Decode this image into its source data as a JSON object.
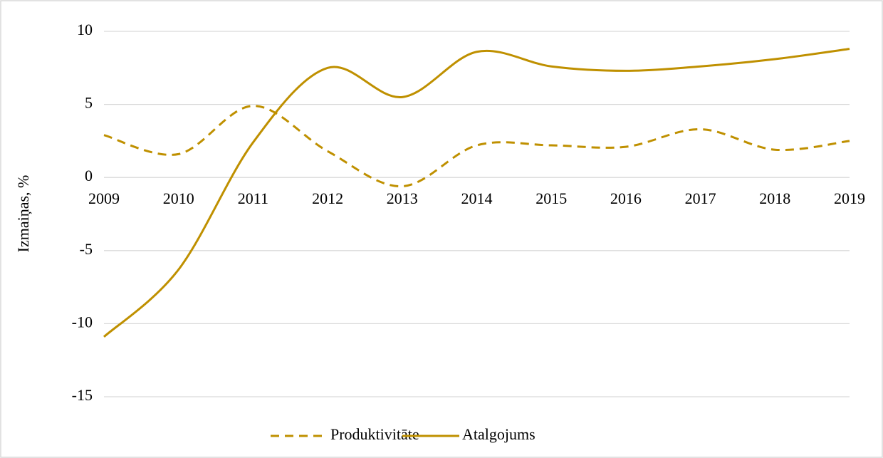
{
  "chart_data": {
    "type": "line",
    "y_label": "Izmaiņas, %",
    "categories": [
      "2009",
      "2010",
      "2011",
      "2012",
      "2013",
      "2014",
      "2015",
      "2016",
      "2017",
      "2018",
      "2019"
    ],
    "series": [
      {
        "name": "Produktivitāte",
        "color": "#bf9000",
        "dash": true,
        "values": [
          2.9,
          1.6,
          4.9,
          1.8,
          -0.6,
          2.2,
          2.2,
          2.1,
          3.3,
          1.9,
          2.5
        ]
      },
      {
        "name": "Atalgojums",
        "color": "#bf9000",
        "dash": false,
        "values": [
          -10.9,
          -6.3,
          2.4,
          7.5,
          5.5,
          8.6,
          7.6,
          7.3,
          7.6,
          8.1,
          8.8
        ]
      }
    ],
    "ylim": [
      -15,
      10
    ],
    "yticks": [
      -15,
      -10,
      -5,
      0,
      5,
      10
    ],
    "grid": true,
    "smooth": true,
    "legend": "bottom"
  }
}
